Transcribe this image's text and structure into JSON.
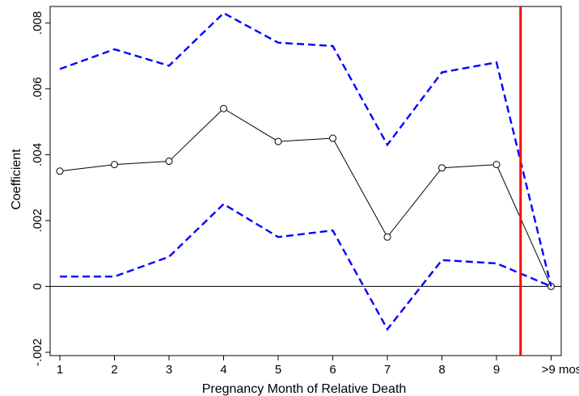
{
  "chart_data": {
    "type": "line",
    "title": "",
    "xlabel": "Pregnancy Month of Relative Death",
    "ylabel": "Coefficient",
    "categories": [
      "1",
      "2",
      "3",
      "4",
      "5",
      "6",
      "7",
      "8",
      "9",
      ">9 mos"
    ],
    "ylim": [
      -0.0021,
      0.0085
    ],
    "yticks": [
      -0.002,
      0,
      0.002,
      0.004,
      0.006,
      0.008
    ],
    "ytick_labels": [
      "-.002",
      "0",
      ".002",
      ".004",
      ".006",
      ".008"
    ],
    "series": [
      {
        "role": "estimate",
        "values": [
          0.0035,
          0.0037,
          0.0038,
          0.0054,
          0.0044,
          0.0045,
          0.0015,
          0.0036,
          0.0037,
          0.0
        ]
      },
      {
        "role": "upper",
        "values": [
          0.0066,
          0.0072,
          0.0067,
          0.0083,
          0.0074,
          0.0073,
          0.0043,
          0.0065,
          0.0068,
          0.0
        ]
      },
      {
        "role": "lower",
        "values": [
          0.0003,
          0.0003,
          0.0009,
          0.0025,
          0.0015,
          0.0017,
          -0.0013,
          0.0008,
          0.0007,
          0.0
        ]
      }
    ],
    "reference_lines": {
      "horizontal_y": 0,
      "vertical_between": [
        "9",
        ">9 mos"
      ]
    },
    "grid": false,
    "legend": "none",
    "colors": {
      "estimate": "#000000",
      "bounds": "#0000ff",
      "vertical": "#ff0000",
      "axis": "#000000"
    }
  }
}
